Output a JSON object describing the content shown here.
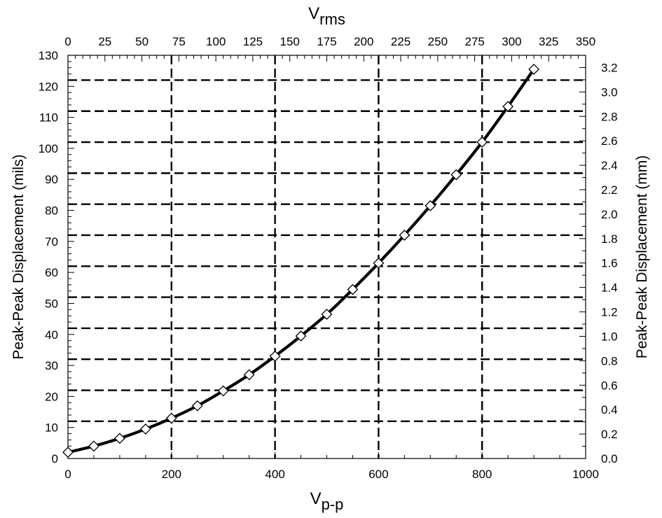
{
  "chart_data": {
    "type": "line",
    "x_bottom": {
      "label_main": "V",
      "label_sub": "p-p",
      "range": [
        0,
        1000
      ],
      "ticks": [
        "0",
        "200",
        "400",
        "600",
        "800",
        "1000"
      ]
    },
    "x_top": {
      "label_main": "V",
      "label_sub": "rms",
      "range": [
        0,
        350
      ],
      "ticks": [
        "0",
        "25",
        "50",
        "75",
        "100",
        "125",
        "150",
        "175",
        "200",
        "225",
        "250",
        "275",
        "300",
        "325",
        "350"
      ]
    },
    "y_left": {
      "label": "Peak-Peak Displacement (mils)",
      "range": [
        0,
        130
      ],
      "ticks": [
        "0",
        "10",
        "20",
        "30",
        "40",
        "50",
        "60",
        "70",
        "80",
        "90",
        "100",
        "110",
        "120",
        "130"
      ]
    },
    "y_right": {
      "label": "Peak-Peak Displacement (mm)",
      "range": [
        0,
        3.3
      ],
      "ticks": [
        "0.0",
        "0.2",
        "0.4",
        "0.6",
        "0.8",
        "1.0",
        "1.2",
        "1.4",
        "1.6",
        "1.8",
        "2.0",
        "2.2",
        "2.4",
        "2.6",
        "2.8",
        "3.0",
        "3.2"
      ]
    },
    "grid": {
      "vertical_x": [
        200,
        400,
        600,
        800
      ],
      "horizontal_y": [
        12,
        22,
        32,
        42,
        52,
        62,
        72,
        82,
        92,
        102,
        112,
        122
      ]
    },
    "series": [
      {
        "marker": "diamond",
        "color": "#000000",
        "x": [
          0,
          50,
          100,
          150,
          200,
          250,
          300,
          350,
          400,
          450,
          500,
          550,
          600,
          650,
          700,
          750,
          800,
          850,
          900
        ],
        "y": [
          2,
          4,
          6.5,
          9.5,
          13,
          17,
          21.8,
          27,
          33,
          39.5,
          46.5,
          54.5,
          63,
          72,
          81.5,
          91.5,
          102,
          113.5,
          125.5
        ]
      }
    ]
  }
}
